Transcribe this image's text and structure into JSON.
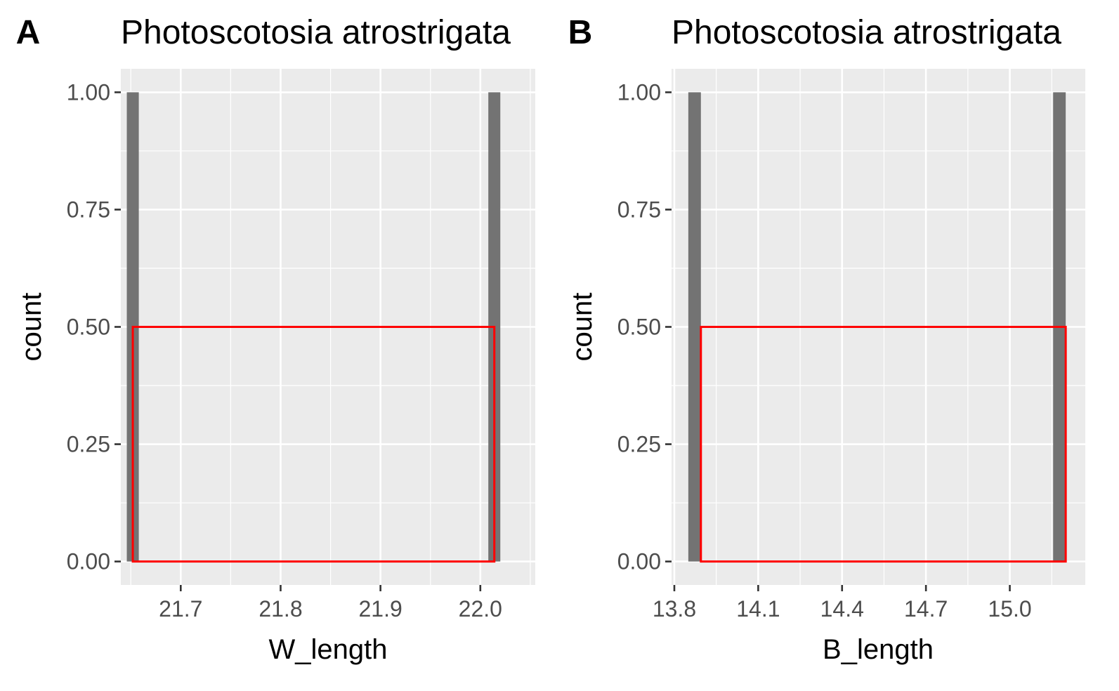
{
  "chart_data": [
    {
      "type": "histogram",
      "panel_tag": "A",
      "title": "Photoscotosia atrostrigata",
      "xlabel": "W_length",
      "ylabel": "count",
      "xlim": [
        21.64,
        22.055
      ],
      "ylim": [
        -0.05,
        1.05
      ],
      "xticks": [
        21.7,
        21.8,
        21.9,
        22.0
      ],
      "xtick_labels": [
        "21.7",
        "21.8",
        "21.9",
        "22.0"
      ],
      "yticks": [
        0,
        0.25,
        0.5,
        0.75,
        1.0
      ],
      "ytick_labels": [
        "0.00",
        "0.25",
        "0.50",
        "0.75",
        "1.00"
      ],
      "bins": [
        {
          "xmin": 21.646,
          "xmax": 21.658,
          "count": 1
        },
        {
          "xmin": 22.008,
          "xmax": 22.02,
          "count": 1
        }
      ],
      "highlight_rect": {
        "xmin": 21.652,
        "xmax": 22.014,
        "ymin": 0,
        "ymax": 0.5,
        "color": "#ff0000"
      },
      "bar_color": "#737373",
      "grid": true,
      "panel_background": "#ebebeb"
    },
    {
      "type": "histogram",
      "panel_tag": "B",
      "title": "Photoscotosia atrostrigata",
      "xlabel": "B_length",
      "ylabel": "count",
      "xlim": [
        13.79,
        15.27
      ],
      "ylim": [
        -0.05,
        1.05
      ],
      "xticks": [
        13.8,
        14.1,
        14.4,
        14.7,
        15.0
      ],
      "xtick_labels": [
        "13.8",
        "14.1",
        "14.4",
        "14.7",
        "15.0"
      ],
      "yticks": [
        0,
        0.25,
        0.5,
        0.75,
        1.0
      ],
      "ytick_labels": [
        "0.00",
        "0.25",
        "0.50",
        "0.75",
        "1.00"
      ],
      "bins": [
        {
          "xmin": 13.85,
          "xmax": 13.895,
          "count": 1
        },
        {
          "xmin": 15.155,
          "xmax": 15.2,
          "count": 1
        }
      ],
      "highlight_rect": {
        "xmin": 13.895,
        "xmax": 15.2,
        "ymin": 0,
        "ymax": 0.5,
        "color": "#ff0000"
      },
      "bar_color": "#737373",
      "grid": true,
      "panel_background": "#ebebeb"
    }
  ]
}
